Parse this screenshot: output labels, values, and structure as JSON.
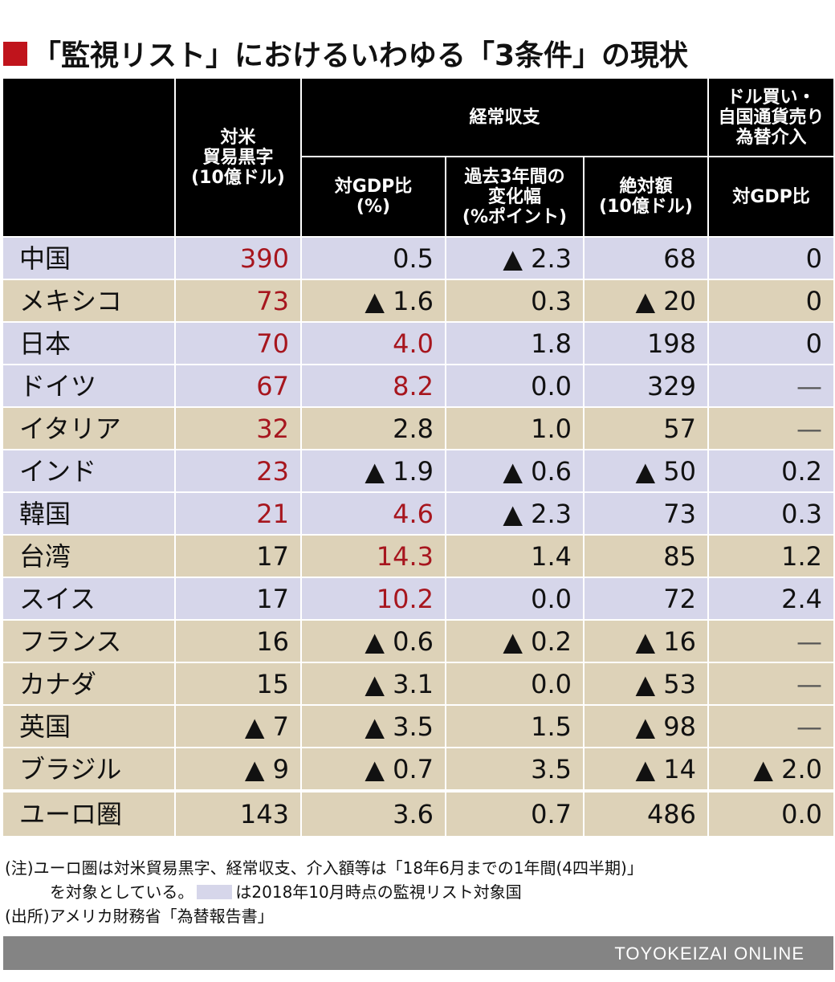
{
  "title": "「監視リスト」におけるいわゆる「3条件」の現状",
  "header": {
    "trade": [
      "対米",
      "貿易黒字",
      "(10億ドル)"
    ],
    "current_account": "経常収支",
    "fx": [
      "ドル買い・",
      "自国通貨売り",
      "為替介入"
    ],
    "ca_gdp": [
      "対GDP比",
      "(%)"
    ],
    "ca_change": [
      "過去3年間の",
      "変化幅",
      "(%ポイント)"
    ],
    "ca_abs": [
      "絶対額",
      "(10億ドル)"
    ],
    "fx_gdp": "対GDP比"
  },
  "rows": [
    {
      "country": "中国",
      "trade": "390",
      "gdp": "0.5",
      "change": "▲ 2.3",
      "abs": "68",
      "fx": "0"
    },
    {
      "country": "メキシコ",
      "trade": "73",
      "gdp": "▲ 1.6",
      "change": "0.3",
      "abs": "▲ 20",
      "fx": "0"
    },
    {
      "country": "日本",
      "trade": "70",
      "gdp": "4.0",
      "change": "1.8",
      "abs": "198",
      "fx": "0"
    },
    {
      "country": "ドイツ",
      "trade": "67",
      "gdp": "8.2",
      "change": "0.0",
      "abs": "329",
      "fx": "—"
    },
    {
      "country": "イタリア",
      "trade": "32",
      "gdp": "2.8",
      "change": "1.0",
      "abs": "57",
      "fx": "—"
    },
    {
      "country": "インド",
      "trade": "23",
      "gdp": "▲ 1.9",
      "change": "▲ 0.6",
      "abs": "▲ 50",
      "fx": "0.2"
    },
    {
      "country": "韓国",
      "trade": "21",
      "gdp": "4.6",
      "change": "▲ 2.3",
      "abs": "73",
      "fx": "0.3"
    },
    {
      "country": "台湾",
      "trade": "17",
      "gdp": "14.3",
      "change": "1.4",
      "abs": "85",
      "fx": "1.2"
    },
    {
      "country": "スイス",
      "trade": "17",
      "gdp": "10.2",
      "change": "0.0",
      "abs": "72",
      "fx": "2.4"
    },
    {
      "country": "フランス",
      "trade": "16",
      "gdp": "▲ 0.6",
      "change": "▲ 0.2",
      "abs": "▲ 16",
      "fx": "—"
    },
    {
      "country": "カナダ",
      "trade": "15",
      "gdp": "▲ 3.1",
      "change": "0.0",
      "abs": "▲ 53",
      "fx": "—"
    },
    {
      "country": "英国",
      "trade": "▲ 7",
      "gdp": "▲ 3.5",
      "change": "1.5",
      "abs": "▲ 98",
      "fx": "—"
    },
    {
      "country": "ブラジル",
      "trade": "▲ 9",
      "gdp": "▲ 0.7",
      "change": "3.5",
      "abs": "▲ 14",
      "fx": "▲ 2.0"
    },
    {
      "country": "ユーロ圏",
      "trade": "143",
      "gdp": "3.6",
      "change": "0.7",
      "abs": "486",
      "fx": "0.0"
    }
  ],
  "notes": {
    "line1": "(注)ユーロ圏は対米貿易黒字、経常収支、介入額等は「18年6月までの1年間(4四半期)」",
    "line2a": "を対象としている。",
    "line2b": "は2018年10月時点の監視リスト対象国",
    "source": "(出所)アメリカ財務省「為替報告書」"
  },
  "footer": "TOYOKEIZAI  ONLINE",
  "colors": {
    "accent_red": "#a7161e",
    "title_square": "#c0141c",
    "watch_list_row": "#d6d6ea",
    "other_row": "#ddd2b8",
    "footer_bar": "#848484"
  }
}
